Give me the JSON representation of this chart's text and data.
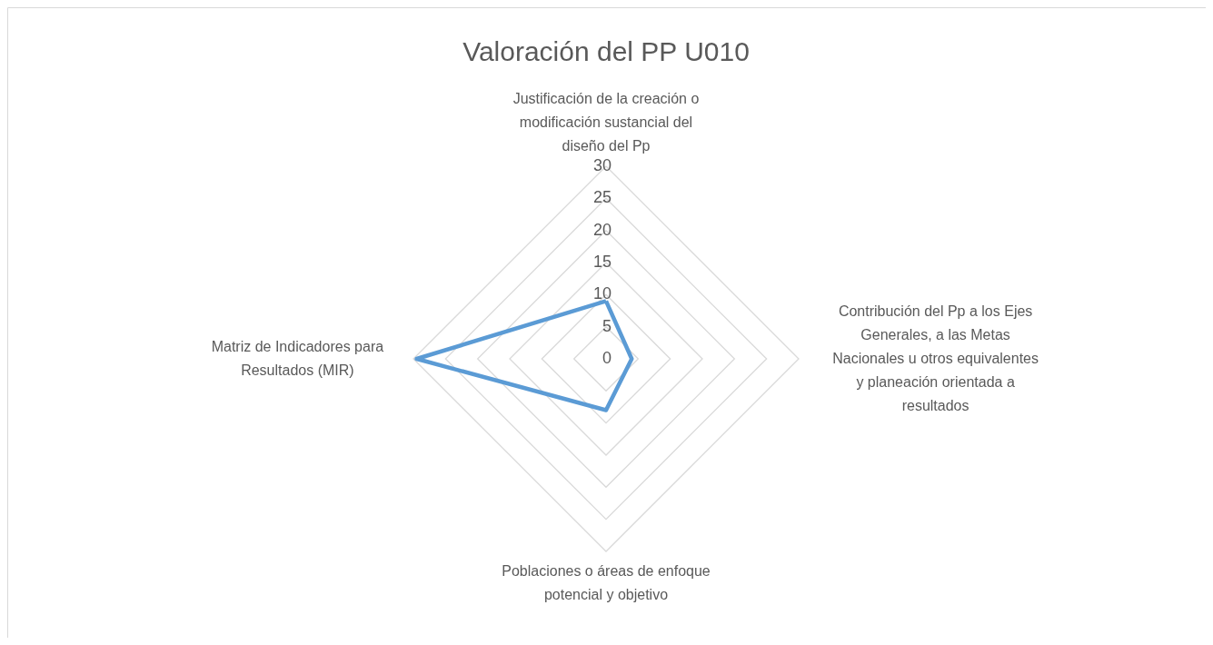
{
  "chart_data": {
    "type": "radar",
    "title": "Valoración del PP U010",
    "categories": [
      "Justificación de la creación o modificación sustancial del diseño del Pp",
      "Contribución del Pp a los Ejes Generales, a las Metas Nacionales u otros equivalentes y planeación orientada a resultados",
      "Poblaciones o áreas de enfoque potencial y objetivo",
      "Matriz de Indicadores para Resultados (MIR)"
    ],
    "series": [
      {
        "color": "#5b9bd5",
        "values": [
          9,
          4,
          8,
          29.5
        ]
      }
    ],
    "ylim": [
      0,
      30
    ],
    "yticks": [
      0,
      5,
      10,
      15,
      20,
      25,
      30
    ],
    "grid": true,
    "marker": "none",
    "line_style": "solid"
  }
}
